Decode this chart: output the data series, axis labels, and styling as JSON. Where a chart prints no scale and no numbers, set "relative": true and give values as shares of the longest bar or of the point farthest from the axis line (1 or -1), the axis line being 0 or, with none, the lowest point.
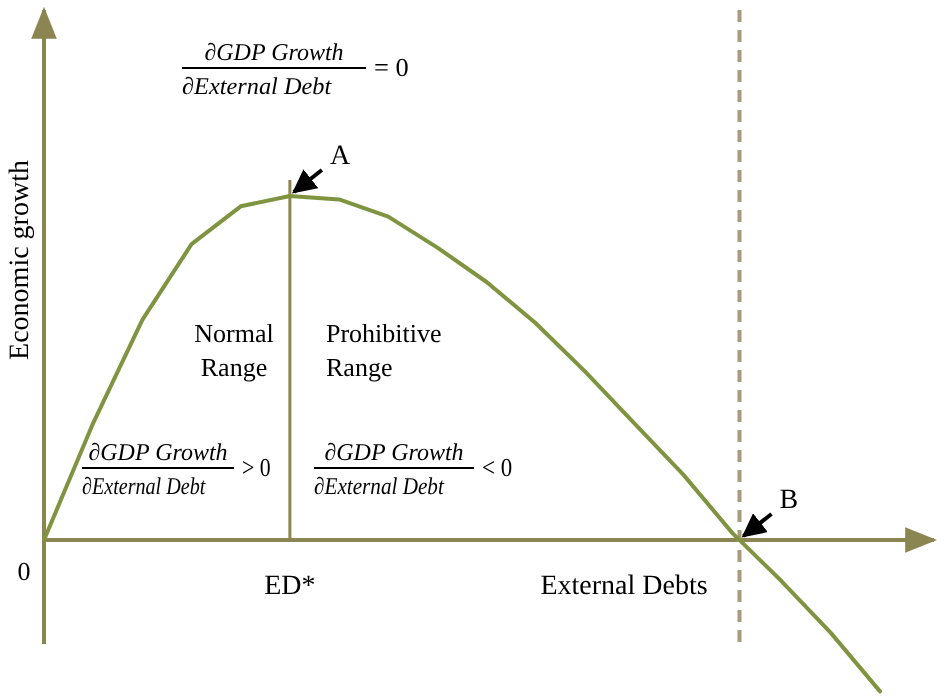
{
  "chart_data": {
    "type": "line",
    "relative": true,
    "ylabel": "Economic growth",
    "xlabel": "External Debts",
    "marker": "none",
    "line_style": "solid",
    "categories": [
      null,
      null,
      null,
      null,
      null,
      null,
      null,
      null,
      null,
      null,
      null,
      null,
      null,
      null,
      null,
      null,
      null,
      null
    ],
    "series": [
      {
        "color": "#7f9440",
        "values": [
          0,
          0.34,
          0.64,
          0.86,
          0.97,
          1,
          0.99,
          0.94,
          0.85,
          0.75,
          0.63,
          0.49,
          0.34,
          0.19,
          0.02,
          -0.12,
          -0.27,
          -0.44
        ]
      }
    ],
    "ref_lines": [
      {
        "axis": "y",
        "value": 0,
        "color": "#8b8552",
        "line_style": "solid"
      },
      {
        "axis": "x",
        "label": "ED*",
        "color": "#8b8552",
        "line_style": "solid"
      },
      {
        "axis": "x",
        "label": "B",
        "color": "#a89a7a",
        "line_style": "dashed"
      }
    ],
    "annotations": [
      "∂GDP Growth",
      "∂External Debt = 0",
      "Normal Range",
      "Prohibitive Range",
      "∂GDP Growth",
      "∂External Debt > 0",
      "∂GDP Growth",
      "∂External Debt < 0",
      "0",
      "A"
    ]
  }
}
